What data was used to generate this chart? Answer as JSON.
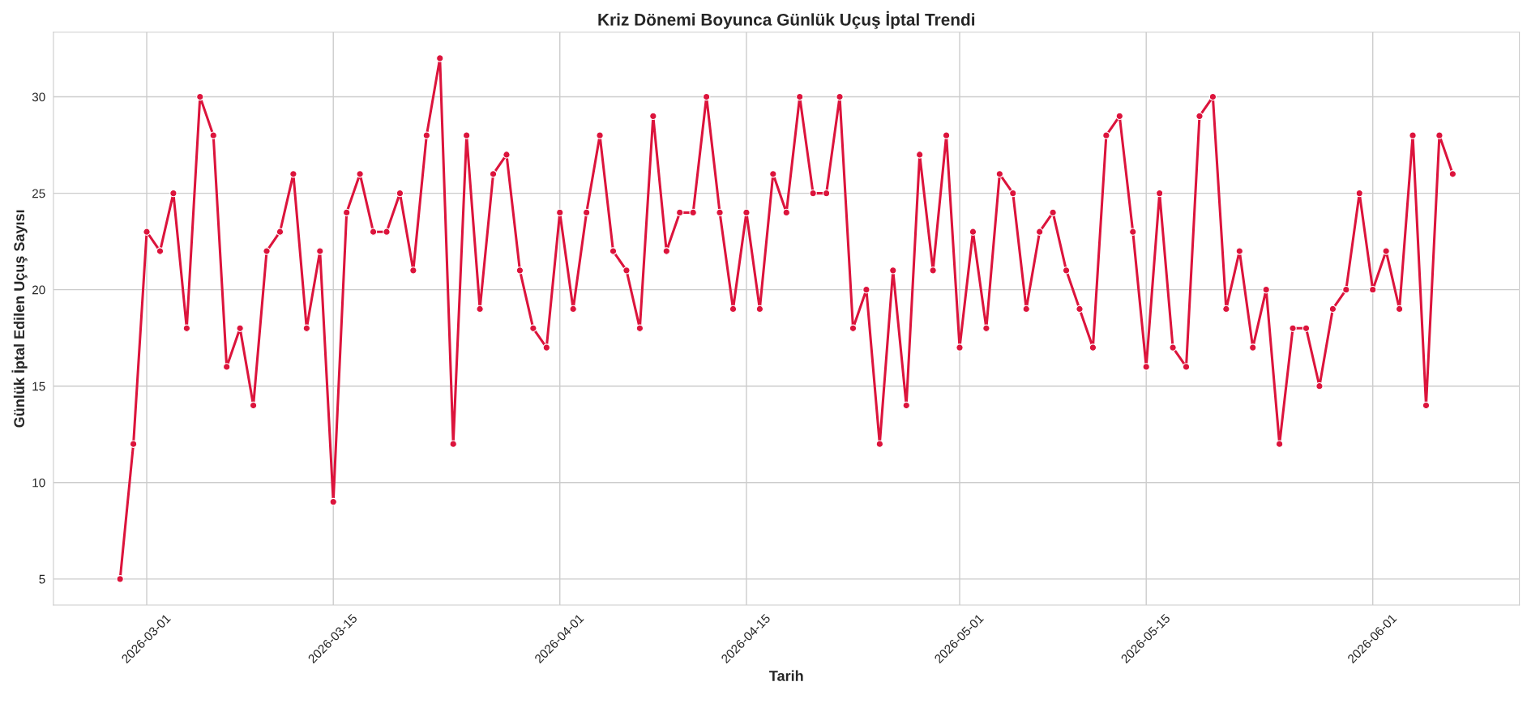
{
  "chart_data": {
    "type": "line",
    "title": "Kriz Dönemi Boyunca Günlük Uçuş İptal Trendi",
    "xlabel": "Tarih",
    "ylabel": "Günlük İptal Edilen Uçuş Sayısı",
    "x": [
      "2026-02-27",
      "2026-02-28",
      "2026-03-01",
      "2026-03-02",
      "2026-03-03",
      "2026-03-04",
      "2026-03-05",
      "2026-03-06",
      "2026-03-07",
      "2026-03-08",
      "2026-03-09",
      "2026-03-10",
      "2026-03-11",
      "2026-03-12",
      "2026-03-13",
      "2026-03-14",
      "2026-03-15",
      "2026-03-16",
      "2026-03-17",
      "2026-03-18",
      "2026-03-19",
      "2026-03-20",
      "2026-03-21",
      "2026-03-22",
      "2026-03-23",
      "2026-03-24",
      "2026-03-25",
      "2026-03-26",
      "2026-03-27",
      "2026-03-28",
      "2026-03-29",
      "2026-03-30",
      "2026-03-31",
      "2026-04-01",
      "2026-04-02",
      "2026-04-03",
      "2026-04-04",
      "2026-04-05",
      "2026-04-06",
      "2026-04-07",
      "2026-04-08",
      "2026-04-09",
      "2026-04-10",
      "2026-04-11",
      "2026-04-12",
      "2026-04-13",
      "2026-04-14",
      "2026-04-15",
      "2026-04-16",
      "2026-04-17",
      "2026-04-18",
      "2026-04-19",
      "2026-04-20",
      "2026-04-21",
      "2026-04-22",
      "2026-04-23",
      "2026-04-24",
      "2026-04-25",
      "2026-04-26",
      "2026-04-27",
      "2026-04-28",
      "2026-04-29",
      "2026-04-30",
      "2026-05-01",
      "2026-05-02",
      "2026-05-03",
      "2026-05-04",
      "2026-05-05",
      "2026-05-06",
      "2026-05-07",
      "2026-05-08",
      "2026-05-09",
      "2026-05-10",
      "2026-05-11",
      "2026-05-12",
      "2026-05-13",
      "2026-05-14",
      "2026-05-15",
      "2026-05-16",
      "2026-05-17",
      "2026-05-18",
      "2026-05-19",
      "2026-05-20",
      "2026-05-21",
      "2026-05-22",
      "2026-05-23",
      "2026-05-24",
      "2026-05-25",
      "2026-05-26",
      "2026-05-27",
      "2026-05-28",
      "2026-05-29",
      "2026-05-30",
      "2026-05-31",
      "2026-06-01",
      "2026-06-02",
      "2026-06-03",
      "2026-06-04",
      "2026-06-05",
      "2026-06-06",
      "2026-06-07"
    ],
    "series": [
      {
        "color": "#dc143c",
        "values": [
          5,
          12,
          23,
          22,
          25,
          18,
          30,
          28,
          16,
          18,
          14,
          22,
          23,
          26,
          18,
          22,
          9,
          24,
          26,
          23,
          23,
          25,
          21,
          28,
          32,
          12,
          28,
          19,
          26,
          27,
          21,
          18,
          17,
          24,
          19,
          24,
          28,
          22,
          21,
          18,
          29,
          22,
          24,
          24,
          30,
          24,
          19,
          24,
          19,
          26,
          24,
          30,
          25,
          25,
          30,
          18,
          20,
          12,
          21,
          14,
          27,
          21,
          28,
          17,
          23,
          18,
          26,
          25,
          19,
          23,
          24,
          21,
          19,
          17,
          28,
          29,
          23,
          16,
          25,
          17,
          16,
          29,
          30,
          19,
          22,
          17,
          20,
          12,
          18,
          18,
          15,
          19,
          20,
          25,
          20,
          22,
          19,
          28,
          14,
          28,
          26
        ]
      }
    ],
    "xlim": [
      "2026-02-22",
      "2026-06-12"
    ],
    "xticks": [
      "2026-03-01",
      "2026-03-15",
      "2026-04-01",
      "2026-04-15",
      "2026-05-01",
      "2026-05-15",
      "2026-06-01"
    ],
    "ylim": [
      3.65,
      33.35
    ],
    "yticks": [
      5,
      10,
      15,
      20,
      25,
      30
    ],
    "grid": true,
    "marker": "circle",
    "line_style": "solid"
  }
}
